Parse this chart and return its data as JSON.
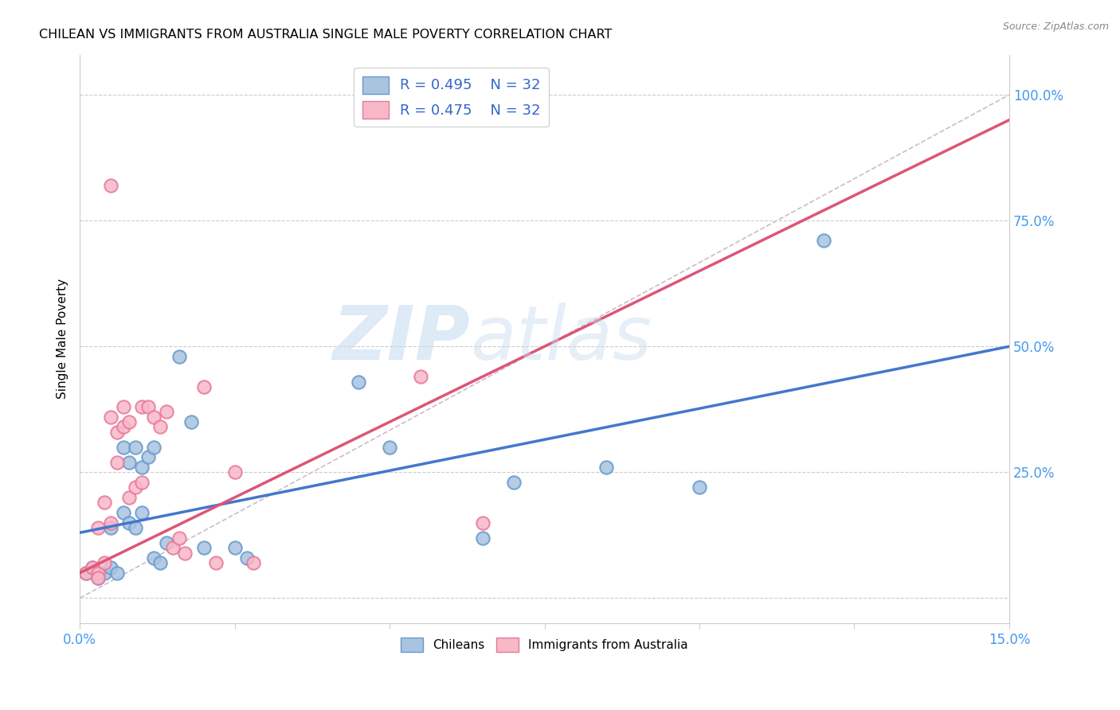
{
  "title": "CHILEAN VS IMMIGRANTS FROM AUSTRALIA SINGLE MALE POVERTY CORRELATION CHART",
  "source": "Source: ZipAtlas.com",
  "ylabel": "Single Male Poverty",
  "y_ticks": [
    0.0,
    0.25,
    0.5,
    0.75,
    1.0
  ],
  "y_tick_labels": [
    "",
    "25.0%",
    "50.0%",
    "75.0%",
    "100.0%"
  ],
  "xlim": [
    0.0,
    0.15
  ],
  "ylim": [
    -0.05,
    1.08
  ],
  "blue_color": "#A8C4E0",
  "blue_edge_color": "#6699CC",
  "pink_color": "#F8B8C8",
  "pink_edge_color": "#E87898",
  "blue_line_color": "#4477CC",
  "pink_line_color": "#DD5577",
  "diagonal_color": "#CCBBCC",
  "watermark_zip": "ZIP",
  "watermark_atlas": "atlas",
  "legend_r_blue": "R = 0.495",
  "legend_n_blue": "N = 32",
  "legend_r_pink": "R = 0.475",
  "legend_n_pink": "N = 32",
  "blue_scatter_x": [
    0.001,
    0.002,
    0.003,
    0.004,
    0.005,
    0.005,
    0.006,
    0.007,
    0.007,
    0.008,
    0.008,
    0.009,
    0.009,
    0.01,
    0.01,
    0.011,
    0.012,
    0.012,
    0.013,
    0.014,
    0.016,
    0.018,
    0.02,
    0.025,
    0.027,
    0.045,
    0.05,
    0.065,
    0.07,
    0.085,
    0.1,
    0.12
  ],
  "blue_scatter_y": [
    0.05,
    0.06,
    0.04,
    0.05,
    0.14,
    0.06,
    0.05,
    0.17,
    0.3,
    0.27,
    0.15,
    0.14,
    0.3,
    0.26,
    0.17,
    0.28,
    0.08,
    0.3,
    0.07,
    0.11,
    0.48,
    0.35,
    0.1,
    0.1,
    0.08,
    0.43,
    0.3,
    0.12,
    0.23,
    0.26,
    0.22,
    0.71
  ],
  "pink_scatter_x": [
    0.001,
    0.002,
    0.003,
    0.003,
    0.004,
    0.004,
    0.005,
    0.005,
    0.006,
    0.006,
    0.007,
    0.007,
    0.008,
    0.008,
    0.009,
    0.01,
    0.01,
    0.011,
    0.012,
    0.013,
    0.014,
    0.015,
    0.016,
    0.017,
    0.02,
    0.022,
    0.025,
    0.028,
    0.055,
    0.065,
    0.005,
    0.003
  ],
  "pink_scatter_y": [
    0.05,
    0.06,
    0.05,
    0.14,
    0.07,
    0.19,
    0.36,
    0.15,
    0.27,
    0.33,
    0.34,
    0.38,
    0.35,
    0.2,
    0.22,
    0.23,
    0.38,
    0.38,
    0.36,
    0.34,
    0.37,
    0.1,
    0.12,
    0.09,
    0.42,
    0.07,
    0.25,
    0.07,
    0.44,
    0.15,
    0.82,
    0.04
  ],
  "blue_line_x": [
    0.0,
    0.15
  ],
  "blue_line_y": [
    0.13,
    0.5
  ],
  "pink_line_x": [
    0.0,
    0.15
  ],
  "pink_line_y": [
    0.05,
    0.95
  ],
  "diag_line_x": [
    0.0,
    0.15
  ],
  "diag_line_y": [
    0.0,
    1.0
  ]
}
